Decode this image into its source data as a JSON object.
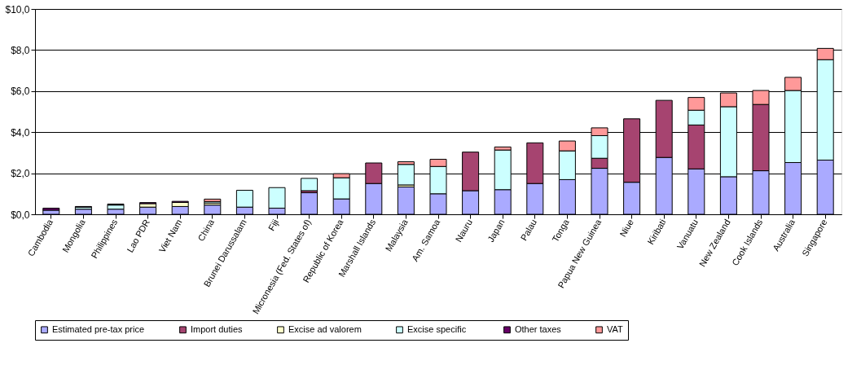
{
  "chart_data": {
    "type": "bar",
    "stacked": true,
    "categories": [
      "Cambodia",
      "Mongolia",
      "Philippines",
      "Lao PDR",
      "Viet Nam",
      "China",
      "Brunei Darussalam",
      "Fiji",
      "Micronesia (Fed. States of)",
      "Republic of Korea",
      "Marshall Islands",
      "Malaysia",
      "Am. Samoa",
      "Nauru",
      "Japan",
      "Palau",
      "Tonga",
      "Papua New Guinea",
      "Niue",
      "Kiribati",
      "Vanuatu",
      "New Zealand",
      "Cook Islands",
      "Australia",
      "Singapore"
    ],
    "series": [
      {
        "name": "Estimated pre-tax price",
        "color": "#aaaaff",
        "values": [
          0.2,
          0.25,
          0.25,
          0.35,
          0.38,
          0.45,
          0.35,
          0.3,
          1.05,
          0.75,
          1.5,
          1.33,
          1.0,
          1.15,
          1.2,
          1.5,
          1.69,
          2.24,
          1.56,
          2.77,
          2.21,
          1.83,
          2.12,
          2.52,
          2.64
        ]
      },
      {
        "name": "Import duties",
        "color": "#a64470",
        "values": [
          null,
          null,
          null,
          null,
          null,
          null,
          null,
          null,
          0.1,
          null,
          1.0,
          null,
          null,
          1.88,
          null,
          1.98,
          null,
          0.49,
          3.09,
          2.78,
          2.14,
          null,
          3.23,
          null,
          null
        ]
      },
      {
        "name": "Excise ad valorem",
        "color": "#ffffcc",
        "values": [
          null,
          null,
          null,
          0.17,
          0.2,
          0.1,
          null,
          null,
          null,
          null,
          null,
          0.1,
          null,
          null,
          null,
          null,
          null,
          null,
          null,
          null,
          null,
          null,
          null,
          null,
          null
        ]
      },
      {
        "name": "Excise  specific",
        "color": "#ccffff",
        "values": [
          null,
          0.1,
          0.2,
          null,
          null,
          0.07,
          0.82,
          1.0,
          0.6,
          1.03,
          null,
          1.0,
          1.33,
          null,
          1.93,
          null,
          1.4,
          1.1,
          null,
          null,
          0.72,
          3.41,
          null,
          3.51,
          4.89
        ]
      },
      {
        "name": "Other taxes",
        "color": "#660066",
        "values": [
          0.1,
          0.03,
          0.05,
          0.05,
          0.05,
          null,
          null,
          null,
          null,
          null,
          null,
          null,
          null,
          null,
          null,
          null,
          null,
          null,
          null,
          null,
          null,
          null,
          null,
          null,
          null
        ]
      },
      {
        "name": "VAT",
        "color": "#ff9999",
        "values": [
          null,
          null,
          null,
          null,
          null,
          0.12,
          null,
          null,
          null,
          0.2,
          null,
          0.13,
          0.35,
          null,
          0.15,
          null,
          0.48,
          0.38,
          null,
          null,
          0.62,
          0.67,
          0.68,
          0.64,
          0.55
        ]
      }
    ],
    "ylim": [
      0,
      10
    ],
    "yticks": [
      {
        "value": 0,
        "label": "$0,0"
      },
      {
        "value": 2,
        "label": "$2,0"
      },
      {
        "value": 4,
        "label": "$4,0"
      },
      {
        "value": 6,
        "label": "$6,0"
      },
      {
        "value": 8,
        "label": "$8,0"
      },
      {
        "value": 10,
        "label": "$10,0"
      }
    ],
    "grid": "y",
    "legend": "bottom"
  }
}
